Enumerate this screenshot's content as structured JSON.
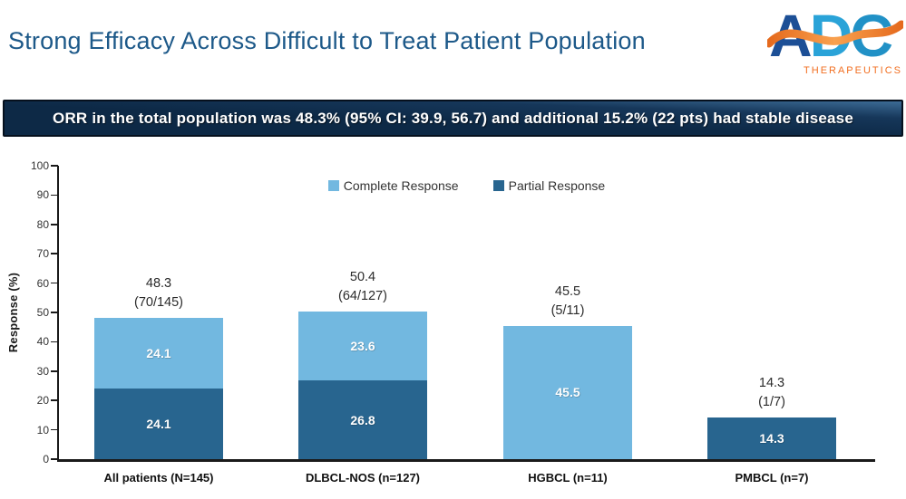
{
  "page": {
    "title": "Strong Efficacy Across Difficult to Treat Patient Population",
    "title_color": "#1d5989",
    "background": "#ffffff"
  },
  "logo": {
    "letters": [
      "A",
      "D",
      "C"
    ],
    "subtext": "THERAPEUTICS",
    "colors": {
      "letter_a": "#1c4f96",
      "letter_d": "#2aa3d8",
      "letter_c": "#2191c6",
      "swoosh_start": "#f9a14f",
      "swoosh_end": "#e56a1d",
      "subtext": "#f26f21"
    }
  },
  "banner": {
    "text": "ORR in the total population was 48.3% (95% CI: 39.9, 56.7) and additional 15.2% (22 pts) had stable disease",
    "background_dark": "#0d2946",
    "background_light": "#3c6b95",
    "text_color": "#ffffff"
  },
  "chart_data": {
    "type": "bar",
    "stacked": true,
    "title": "",
    "xlabel": "",
    "ylabel": "Response (%)",
    "ylim": [
      0,
      100
    ],
    "yticks": [
      0,
      10,
      20,
      30,
      40,
      50,
      60,
      70,
      80,
      90,
      100
    ],
    "grid": false,
    "legend_position": "top-center",
    "categories": [
      "All patients (N=145)",
      "DLBCL-NOS (n=127)",
      "HGBCL (n=11)",
      "PMBCL (n=7)"
    ],
    "series": [
      {
        "name": "Complete Response",
        "color": "#72b8e0",
        "values": [
          24.1,
          23.6,
          45.5,
          0
        ]
      },
      {
        "name": "Partial Response",
        "color": "#28658f",
        "values": [
          24.1,
          26.8,
          0,
          14.3
        ]
      }
    ],
    "totals": [
      {
        "value": "48.3",
        "fraction": "(70/145)"
      },
      {
        "value": "50.4",
        "fraction": "(64/127)"
      },
      {
        "value": "45.5",
        "fraction": "(5/11)"
      },
      {
        "value": "14.3",
        "fraction": "(1/7)"
      }
    ]
  }
}
